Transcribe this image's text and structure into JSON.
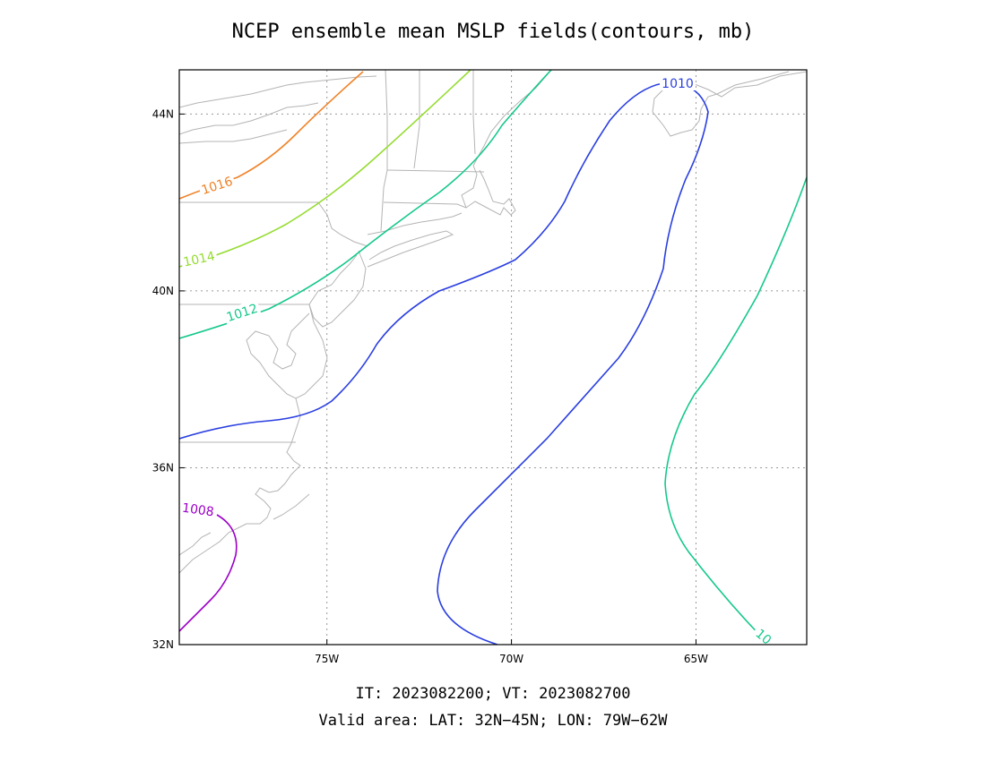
{
  "title": "NCEP ensemble mean MSLP fields(contours, mb)",
  "footer": {
    "line1": "IT: 2023082200; VT: 2023082700",
    "line2": "Valid area: LAT: 32N−45N; LON: 79W−62W"
  },
  "map": {
    "lat_range": [
      32,
      45
    ],
    "lon_range": [
      -79,
      -62
    ],
    "lat_ticks": [
      {
        "value": 32,
        "label": "32N"
      },
      {
        "value": 36,
        "label": "36N"
      },
      {
        "value": 40,
        "label": "40N"
      },
      {
        "value": 44,
        "label": "44N"
      }
    ],
    "lon_ticks": [
      {
        "value": -75,
        "label": "75W"
      },
      {
        "value": -70,
        "label": "70W"
      },
      {
        "value": -65,
        "label": "65W"
      }
    ],
    "grid": true
  },
  "contours": [
    {
      "level": 1008,
      "label": "1008",
      "color": "#9b00c8"
    },
    {
      "level": 1010,
      "label": "1010",
      "color": "#2a3fe0"
    },
    {
      "level": 1012,
      "label": "1012",
      "color": "#14c88c"
    },
    {
      "level": 1012,
      "label": "10",
      "color": "#14c88c"
    },
    {
      "level": 1014,
      "label": "1014",
      "color": "#96dc32"
    },
    {
      "level": 1016,
      "label": "1016",
      "color": "#f08228"
    }
  ]
}
